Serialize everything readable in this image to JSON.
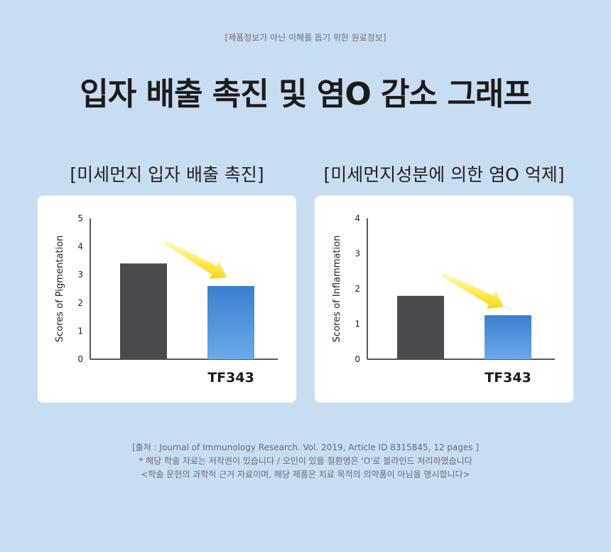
{
  "header": {
    "disclaimer": "[제품정보가 아닌 이해를 돕기 위한 원료정보]",
    "title": "입자 배출 촉진 및 염O 감소 그래프"
  },
  "chart_data": [
    {
      "type": "bar",
      "title": "[미세먼지 입자 배출 촉진]",
      "ylabel": "Scores of Pigmentation",
      "categories": [
        "",
        "TF343"
      ],
      "values": [
        3.4,
        2.6
      ],
      "ylim": [
        0,
        5
      ],
      "yticks": [
        "0",
        "1",
        "2",
        "3",
        "4",
        "5"
      ],
      "colors": [
        "#4b4b4f",
        "#3a7fd0"
      ],
      "annotation": "yellow-arrow-down-right",
      "grid": false
    },
    {
      "type": "bar",
      "title": "[미세먼지성분에 의한 염O 억제]",
      "ylabel": "Scores of Inflammation",
      "categories": [
        "",
        "TF343"
      ],
      "values": [
        1.8,
        1.25
      ],
      "ylim": [
        0,
        4
      ],
      "yticks": [
        "0",
        "1",
        "2",
        "3",
        "4"
      ],
      "colors": [
        "#4b4b4f",
        "#3a7fd0"
      ],
      "annotation": "yellow-arrow-down-right",
      "grid": false
    }
  ],
  "footer": {
    "line1": "[출처 : Journal of Immunology Research. Vol. 2019, Article ID 8315845, 12 pages ]",
    "line2": "* 해당 학술 자료는 저작권이 있습니다 / 오인이 있을 질환명은 'O'로 블라인드 처리하였습니다",
    "line3": "<학술 문헌의 과학적 근거 자료이며, 해당 제품은 치료 목적의 의약품이 아님을 명시합니다>"
  }
}
